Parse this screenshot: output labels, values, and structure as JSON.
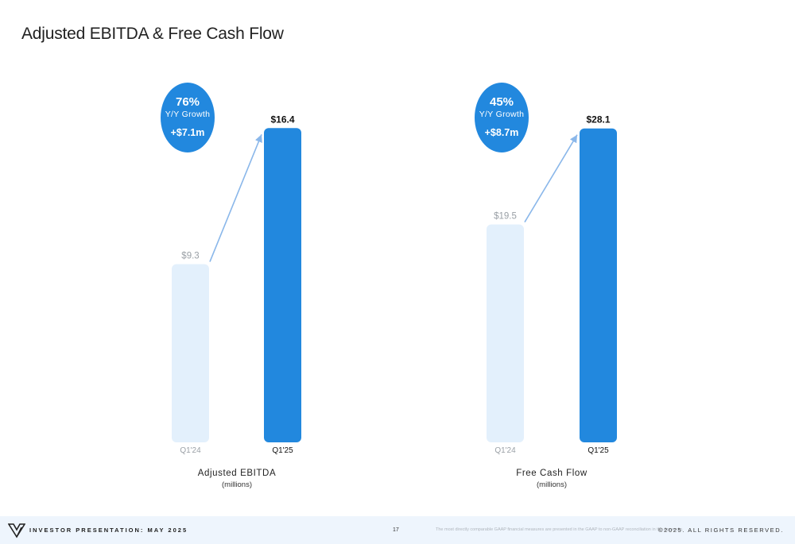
{
  "page": {
    "title": "Adjusted EBITDA & Free Cash Flow"
  },
  "colors": {
    "accent": "#2288de",
    "prior_bar": "#e3f0fc",
    "arrow": "#8ab7ea",
    "footer_bg": "#eef5fd"
  },
  "chart_data": [
    {
      "type": "bar",
      "title": "",
      "categories": [
        "Q1'24",
        "Q1'25"
      ],
      "values": [
        9.3,
        16.4
      ],
      "value_labels": [
        "$9.3",
        "$16.4"
      ],
      "xlabel": "Adjusted EBITDA",
      "unit_label": "(millions)",
      "ylim": [
        0,
        17.2
      ],
      "growth_pct": "76%",
      "growth_label": "Y/Y Growth",
      "growth_delta": "+$7.1m"
    },
    {
      "type": "bar",
      "title": "",
      "categories": [
        "Q1'24",
        "Q1'25"
      ],
      "values": [
        19.5,
        28.1
      ],
      "value_labels": [
        "$19.5",
        "$28.1"
      ],
      "xlabel": "Free Cash Flow",
      "unit_label": "(millions)",
      "ylim": [
        0,
        29.5
      ],
      "growth_pct": "45%",
      "growth_label": "Y/Y Growth",
      "growth_delta": "+$8.7m"
    }
  ],
  "footer": {
    "left_text": "INVESTOR PRESENTATION: MAY 2025",
    "page_number": "17",
    "note": "The most directly comparable GAAP financial measures are presented in the GAAP to non-GAAP reconciliation in the Appendix.",
    "right_text": "©2025.  ALL RIGHTS RESERVED.",
    "logo_icon": "brand-logo-icon"
  }
}
